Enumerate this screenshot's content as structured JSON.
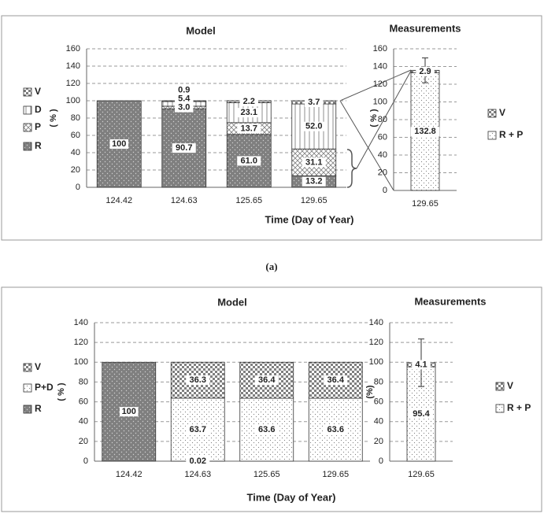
{
  "chart_data": [
    {
      "type": "bar",
      "stacked": true,
      "title": "Model",
      "y_label": "( % )",
      "x_label": "Time (Day of Year)",
      "categories": [
        "124.42",
        "124.63",
        "125.65",
        "129.65"
      ],
      "series": [
        {
          "name": "R",
          "color": "#7f7f7f",
          "pattern": "dots",
          "values": [
            100,
            90.7,
            61.0,
            13.2
          ],
          "value_labels": [
            "100",
            "90.7",
            "61.0",
            "13.2"
          ]
        },
        {
          "name": "P",
          "color": "#7f7f7f",
          "pattern": "cross",
          "values": [
            null,
            3.0,
            13.7,
            31.1
          ],
          "value_labels": [
            null,
            "3.0",
            "13.7",
            "31.1"
          ]
        },
        {
          "name": "D",
          "color": "#7f7f7f",
          "pattern": "vlines",
          "values": [
            null,
            5.4,
            23.1,
            52.0
          ],
          "value_labels": [
            null,
            "5.4",
            "23.1",
            "52.0"
          ]
        },
        {
          "name": "V",
          "color": "#7f7f7f",
          "pattern": "check",
          "values": [
            null,
            0.9,
            2.2,
            3.7
          ],
          "value_labels": [
            null,
            "0.9",
            "2.2",
            "3.7"
          ]
        }
      ],
      "ylim": [
        0,
        160
      ],
      "yticks": [
        0,
        20,
        40,
        60,
        80,
        100,
        120,
        140,
        160
      ],
      "grid": true
    },
    {
      "type": "bar",
      "stacked": true,
      "title": "Measurements",
      "y_label": "( % )",
      "categories": [
        "129.65"
      ],
      "series": [
        {
          "name": "R + P",
          "color": "#7f7f7f",
          "pattern": "sparse",
          "values": [
            132.8
          ]
        },
        {
          "name": "V",
          "color": "#7f7f7f",
          "pattern": "check",
          "values": [
            2.9
          ],
          "errors": [
            14
          ]
        }
      ],
      "ylim": [
        0,
        160
      ],
      "yticks": [
        0,
        20,
        40,
        60,
        80,
        100,
        120,
        140,
        160
      ],
      "grid": true
    },
    {
      "type": "bar",
      "stacked": true,
      "title": "Model",
      "y_label": "( % )",
      "x_label": "Time (Day of Year)",
      "categories": [
        "124.42",
        "124.63",
        "125.65",
        "129.65"
      ],
      "series": [
        {
          "name": "R",
          "color": "#7f7f7f",
          "pattern": "dots",
          "values": [
            100,
            0.02,
            null,
            null
          ]
        },
        {
          "name": "P+D",
          "color": "#7f7f7f",
          "pattern": "sparse",
          "values": [
            null,
            63.7,
            63.6,
            63.6
          ]
        },
        {
          "name": "V",
          "color": "#7f7f7f",
          "pattern": "check",
          "values": [
            null,
            36.3,
            36.4,
            36.4
          ]
        }
      ],
      "ylim": [
        0,
        140
      ],
      "yticks": [
        0,
        20,
        40,
        60,
        80,
        100,
        120,
        140
      ],
      "grid": true
    },
    {
      "type": "bar",
      "stacked": true,
      "title": "Measurements",
      "y_label": "(%)",
      "categories": [
        "129.65"
      ],
      "series": [
        {
          "name": "R + P",
          "color": "#7f7f7f",
          "pattern": "sparse",
          "values": [
            95.4
          ]
        },
        {
          "name": "V",
          "color": "#7f7f7f",
          "pattern": "check",
          "values": [
            4.1
          ],
          "errors": [
            24
          ]
        }
      ],
      "ylim": [
        0,
        140
      ],
      "yticks": [
        0,
        20,
        40,
        60,
        80,
        100,
        120,
        140
      ],
      "grid": true
    }
  ],
  "caption": "(a)"
}
